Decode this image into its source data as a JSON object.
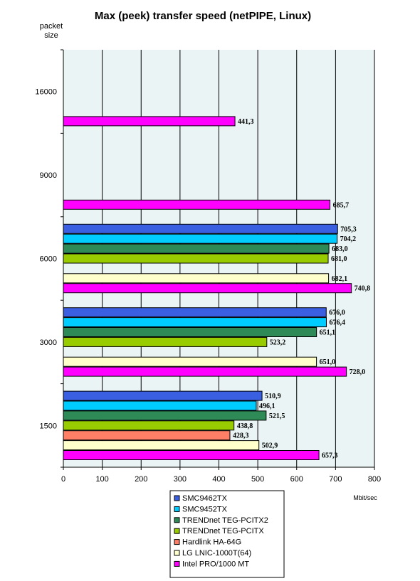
{
  "chart_data": {
    "type": "bar",
    "orientation": "horizontal",
    "title": "Max (peek) transfer speed (netPIPE, Linux)",
    "ylabel_line1": "packet",
    "ylabel_line2": "size",
    "xlabel": "Mbit/sec",
    "xlim": [
      0,
      800
    ],
    "xticks": [
      "0",
      "100",
      "200",
      "300",
      "400",
      "500",
      "600",
      "700",
      "800"
    ],
    "grid": true,
    "legend_position": "bottom",
    "categories": [
      "16000",
      "9000",
      "6000",
      "3000",
      "1500"
    ],
    "series": [
      {
        "name": "SMC9462TX",
        "color": "#3A5FE0",
        "values": [
          null,
          null,
          705.3,
          676.0,
          510.9
        ],
        "labels": [
          null,
          null,
          "705,3",
          "676,0",
          "510,9"
        ]
      },
      {
        "name": "SMC9452TX",
        "color": "#00CCFF",
        "values": [
          null,
          null,
          704.2,
          676.4,
          496.1
        ],
        "labels": [
          null,
          null,
          "704,2",
          "676,4",
          "496,1"
        ]
      },
      {
        "name": "TRENDnet TEG-PCITX2",
        "color": "#2E8B57",
        "values": [
          null,
          null,
          683.0,
          651.1,
          521.5
        ],
        "labels": [
          null,
          null,
          "683,0",
          "651,1",
          "521,5"
        ]
      },
      {
        "name": "TRENDnet TEG-PCITX",
        "color": "#99CC00",
        "values": [
          null,
          null,
          681.0,
          523.2,
          438.8
        ],
        "labels": [
          null,
          null,
          "681,0",
          "523,2",
          "438,8"
        ]
      },
      {
        "name": "Hardlink HA-64G",
        "color": "#FF7F66",
        "values": [
          null,
          null,
          null,
          null,
          428.3
        ],
        "labels": [
          null,
          null,
          null,
          null,
          "428,3"
        ]
      },
      {
        "name": "LG LNIC-1000T(64)",
        "color": "#FFFFCC",
        "values": [
          null,
          null,
          682.1,
          651.0,
          502.9
        ],
        "labels": [
          null,
          null,
          "682,1",
          "651,0",
          "502,9"
        ]
      },
      {
        "name": "Intel PRO/1000 MT",
        "color": "#FF00FF",
        "values": [
          441.3,
          685.7,
          740.8,
          728.0,
          657.3
        ],
        "labels": [
          "441,3",
          "685,7",
          "740,8",
          "728,0",
          "657,3"
        ]
      }
    ]
  }
}
